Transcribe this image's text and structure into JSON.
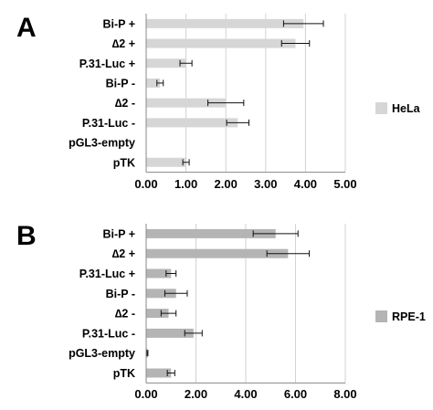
{
  "chart_data": [
    {
      "type": "bar",
      "orientation": "horizontal",
      "panel_label": "A",
      "categories": [
        "Bi-P +",
        "∆2 +",
        "P.31-Luc +",
        "Bi-P -",
        "∆2 -",
        "P.31-Luc -",
        "pGL3-empty",
        "pTK"
      ],
      "series": [
        {
          "name": "HeLa",
          "color": "#d6d6d6",
          "values": [
            3.95,
            3.75,
            1.0,
            0.35,
            2.0,
            2.3,
            0.0,
            1.0
          ],
          "errors": [
            0.5,
            0.35,
            0.15,
            0.08,
            0.45,
            0.28,
            0.0,
            0.08
          ]
        }
      ],
      "xlim": [
        0,
        5
      ],
      "xticks": [
        "0.00",
        "1.00",
        "2.00",
        "3.00",
        "4.00",
        "5.00"
      ],
      "grid": "vertical",
      "legend": "right"
    },
    {
      "type": "bar",
      "orientation": "horizontal",
      "panel_label": "B",
      "categories": [
        "Bi-P +",
        "∆2 +",
        "P.31-Luc +",
        "Bi-P -",
        "∆2 -",
        "P.31-Luc -",
        "pGL3-empty",
        "pTK"
      ],
      "series": [
        {
          "name": "RPE-1",
          "color": "#b4b4b4",
          "values": [
            5.2,
            5.7,
            1.0,
            1.2,
            0.9,
            1.9,
            0.05,
            1.0
          ],
          "errors": [
            0.9,
            0.85,
            0.2,
            0.45,
            0.3,
            0.35,
            0.02,
            0.15
          ]
        }
      ],
      "xlim": [
        0,
        8
      ],
      "xticks": [
        "0.00",
        "2.00",
        "4.00",
        "6.00",
        "8.00"
      ],
      "grid": "vertical",
      "legend": "right"
    }
  ]
}
